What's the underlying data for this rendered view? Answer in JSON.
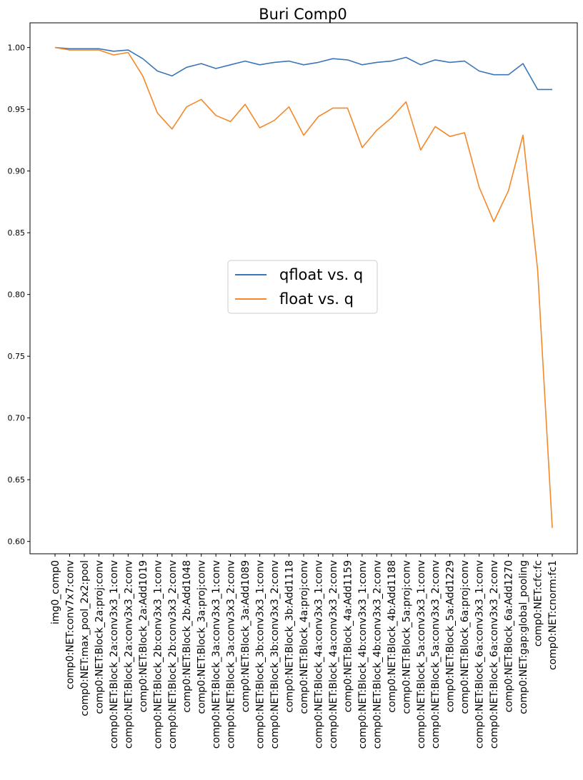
{
  "chart_data": {
    "type": "line",
    "title": "Buri Comp0",
    "xlabel": "",
    "ylabel": "",
    "ylim": [
      0.59,
      1.02
    ],
    "yticks": [
      "0.60",
      "0.65",
      "0.70",
      "0.75",
      "0.80",
      "0.85",
      "0.90",
      "0.95",
      "1.00"
    ],
    "grid": false,
    "legend_position": "center",
    "categories": [
      "img0_comp0",
      "comp0:NET:conv7x7:conv",
      "comp0:NET:max_pool_2x2:pool",
      "comp0:NET:Block_2a:proj:conv",
      "comp0:NET:Block_2a:conv3x3_1:conv",
      "comp0:NET:Block_2a:conv3x3_2:conv",
      "comp0:NET:Block_2a:Add1019",
      "comp0:NET:Block_2b:conv3x3_1:conv",
      "comp0:NET:Block_2b:conv3x3_2:conv",
      "comp0:NET:Block_2b:Add1048",
      "comp0:NET:Block_3a:proj:conv",
      "comp0:NET:Block_3a:conv3x3_1:conv",
      "comp0:NET:Block_3a:conv3x3_2:conv",
      "comp0:NET:Block_3a:Add1089",
      "comp0:NET:Block_3b:conv3x3_1:conv",
      "comp0:NET:Block_3b:conv3x3_2:conv",
      "comp0:NET:Block_3b:Add1118",
      "comp0:NET:Block_4a:proj:conv",
      "comp0:NET:Block_4a:conv3x3_1:conv",
      "comp0:NET:Block_4a:conv3x3_2:conv",
      "comp0:NET:Block_4a:Add1159",
      "comp0:NET:Block_4b:conv3x3_1:conv",
      "comp0:NET:Block_4b:conv3x3_2:conv",
      "comp0:NET:Block_4b:Add1188",
      "comp0:NET:Block_5a:proj:conv",
      "comp0:NET:Block_5a:conv3x3_1:conv",
      "comp0:NET:Block_5a:conv3x3_2:conv",
      "comp0:NET:Block_5a:Add1229",
      "comp0:NET:Block_6a:proj:conv",
      "comp0:NET:Block_6a:conv3x3_1:conv",
      "comp0:NET:Block_6a:conv3x3_2:conv",
      "comp0:NET:Block_6a:Add1270",
      "comp0:NET:gap:global_pooling",
      "comp0:NET:cfc:fc",
      "comp0:NET:cnorm:fc1"
    ],
    "series": [
      {
        "name": "qfloat vs. q",
        "color": "#3a76b7",
        "values": [
          1.0,
          0.999,
          0.999,
          0.999,
          0.997,
          0.998,
          0.991,
          0.981,
          0.977,
          0.984,
          0.987,
          0.983,
          0.986,
          0.989,
          0.986,
          0.988,
          0.989,
          0.986,
          0.988,
          0.991,
          0.99,
          0.986,
          0.988,
          0.989,
          0.992,
          0.986,
          0.99,
          0.988,
          0.989,
          0.981,
          0.978,
          0.978,
          0.987,
          0.966,
          0.966
        ]
      },
      {
        "name": "float vs. q",
        "color": "#f2892a",
        "values": [
          1.0,
          0.998,
          0.998,
          0.998,
          0.994,
          0.996,
          0.977,
          0.947,
          0.934,
          0.952,
          0.958,
          0.945,
          0.94,
          0.954,
          0.935,
          0.941,
          0.952,
          0.929,
          0.944,
          0.951,
          0.951,
          0.919,
          0.933,
          0.943,
          0.956,
          0.917,
          0.936,
          0.928,
          0.931,
          0.887,
          0.859,
          0.884,
          0.929,
          0.82,
          0.611
        ]
      }
    ]
  }
}
